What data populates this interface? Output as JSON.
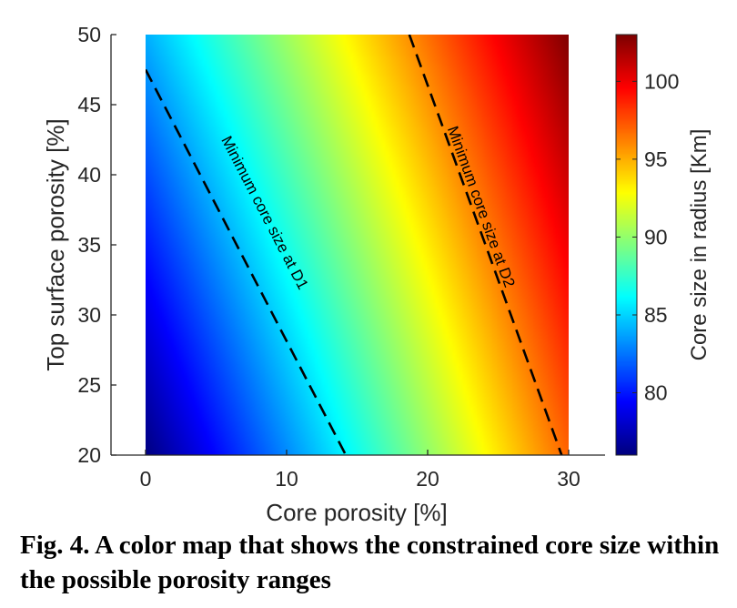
{
  "caption": "Fig. 4. A color map that shows the constrained core size within the possible porosity ranges",
  "chart_data": {
    "type": "heatmap",
    "xlabel": "Core porosity [%]",
    "ylabel": "Top surface porosity [%]",
    "colorbar_label": "Core size in radius [Km]",
    "xlim": [
      0,
      30
    ],
    "ylim": [
      20,
      50
    ],
    "xticks": [
      0,
      10,
      20,
      30
    ],
    "yticks": [
      20,
      25,
      30,
      35,
      40,
      45,
      50
    ],
    "colorbar_ticks": [
      80,
      85,
      90,
      95,
      100
    ],
    "clim": [
      76,
      103
    ],
    "colormap": "jet",
    "corner_values": {
      "x0_y20": 76,
      "x30_y20": 97,
      "x0_y50": 84,
      "x30_y50": 103
    },
    "annotations": [
      {
        "text": "Minimum core size at D1",
        "style": "dashed",
        "color": "#000000",
        "line": [
          [
            0,
            47.5
          ],
          [
            14.2,
            20
          ]
        ]
      },
      {
        "text": "Minimum core size at D2",
        "style": "dashed",
        "color": "#000000",
        "line": [
          [
            18.7,
            50
          ],
          [
            29.5,
            20
          ]
        ]
      }
    ]
  }
}
